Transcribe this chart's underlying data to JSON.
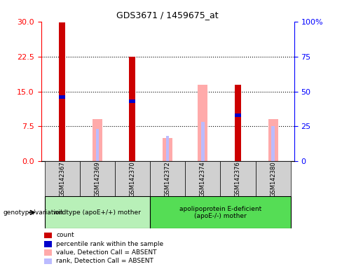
{
  "title": "GDS3671 / 1459675_at",
  "samples": [
    "GSM142367",
    "GSM142369",
    "GSM142370",
    "GSM142372",
    "GSM142374",
    "GSM142376",
    "GSM142380"
  ],
  "count": [
    29.8,
    null,
    22.5,
    null,
    null,
    16.5,
    null
  ],
  "percentile_rank_pct": [
    46.0,
    null,
    43.0,
    null,
    null,
    33.0,
    null
  ],
  "value_absent": [
    null,
    9.0,
    null,
    5.0,
    16.5,
    null,
    9.0
  ],
  "rank_absent_pct": [
    null,
    23.0,
    null,
    18.0,
    28.0,
    null,
    25.0
  ],
  "ylim_left": [
    0,
    30
  ],
  "ylim_right": [
    0,
    100
  ],
  "yticks_left": [
    0,
    7.5,
    15,
    22.5,
    30
  ],
  "yticks_right": [
    0,
    25,
    50,
    75,
    100
  ],
  "group1_label": "wildtype (apoE+/+) mother",
  "group2_label": "apolipoprotein E-deficient\n(apoE-/-) mother",
  "color_count": "#cc0000",
  "color_percentile": "#0000cc",
  "color_value_absent": "#ffaaaa",
  "color_rank_absent": "#bbbbff",
  "color_group1_bg": "#b8f0b8",
  "color_group2_bg": "#55dd55",
  "legend_items": [
    {
      "label": "count",
      "color": "#cc0000"
    },
    {
      "label": "percentile rank within the sample",
      "color": "#0000cc"
    },
    {
      "label": "value, Detection Call = ABSENT",
      "color": "#ffaaaa"
    },
    {
      "label": "rank, Detection Call = ABSENT",
      "color": "#bbbbff"
    }
  ]
}
